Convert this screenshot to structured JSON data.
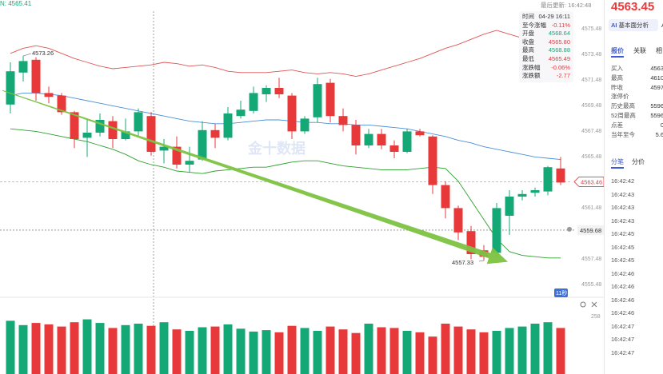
{
  "header": {
    "top_left_price": "N: 4565.41",
    "last_update": "最后更新: 16:42:48"
  },
  "ohlc_panel": {
    "rows": [
      {
        "label": "时间",
        "value": "04-29 16:11",
        "tone": "plain"
      },
      {
        "label": "至今涨幅",
        "value": "-0.11%",
        "tone": "red"
      },
      {
        "label": "开盘",
        "value": "4568.64",
        "tone": "green"
      },
      {
        "label": "收盘",
        "value": "4565.80",
        "tone": "red"
      },
      {
        "label": "最高",
        "value": "4568.88",
        "tone": "green"
      },
      {
        "label": "最低",
        "value": "4565.49",
        "tone": "red"
      },
      {
        "label": "涨跌幅",
        "value": "-0.06%",
        "tone": "red"
      },
      {
        "label": "涨跌额",
        "value": "-2.77",
        "tone": "red"
      }
    ]
  },
  "chart_data": {
    "type": "candlestick",
    "y_range": [
      4555.3,
      4576.3
    ],
    "y_ticks": [
      "4575.48",
      "4573.48",
      "4571.48",
      "4569.48",
      "4567.48",
      "4565.48",
      "4563.48",
      "4561.48",
      "4559.48",
      "4557.48",
      "4555.48"
    ],
    "candles": [
      {
        "o": 4569.5,
        "h": 4572.8,
        "l": 4568.8,
        "c": 4572.1
      },
      {
        "o": 4572.0,
        "h": 4573.3,
        "l": 4571.3,
        "c": 4572.9
      },
      {
        "o": 4573.0,
        "h": 4573.2,
        "l": 4569.8,
        "c": 4570.4
      },
      {
        "o": 4570.4,
        "h": 4570.9,
        "l": 4569.6,
        "c": 4570.1
      },
      {
        "o": 4570.2,
        "h": 4570.4,
        "l": 4568.7,
        "c": 4568.9
      },
      {
        "o": 4568.9,
        "h": 4569.0,
        "l": 4566.1,
        "c": 4566.8
      },
      {
        "o": 4566.9,
        "h": 4568.3,
        "l": 4565.4,
        "c": 4567.3
      },
      {
        "o": 4567.3,
        "h": 4568.8,
        "l": 4567.0,
        "c": 4568.3
      },
      {
        "o": 4568.2,
        "h": 4568.6,
        "l": 4566.1,
        "c": 4566.8
      },
      {
        "o": 4566.8,
        "h": 4568.4,
        "l": 4566.7,
        "c": 4567.4
      },
      {
        "o": 4567.4,
        "h": 4569.2,
        "l": 4567.0,
        "c": 4568.9
      },
      {
        "o": 4568.6,
        "h": 4568.9,
        "l": 4565.5,
        "c": 4565.8
      },
      {
        "o": 4565.9,
        "h": 4566.8,
        "l": 4564.9,
        "c": 4566.2
      },
      {
        "o": 4566.2,
        "h": 4567.0,
        "l": 4564.5,
        "c": 4564.8
      },
      {
        "o": 4564.8,
        "h": 4566.2,
        "l": 4564.2,
        "c": 4565.1
      },
      {
        "o": 4565.2,
        "h": 4568.2,
        "l": 4565.1,
        "c": 4567.5
      },
      {
        "o": 4567.5,
        "h": 4568.0,
        "l": 4566.1,
        "c": 4566.9
      },
      {
        "o": 4566.9,
        "h": 4569.3,
        "l": 4566.7,
        "c": 4568.8
      },
      {
        "o": 4568.6,
        "h": 4569.8,
        "l": 4568.4,
        "c": 4569.1
      },
      {
        "o": 4569.0,
        "h": 4570.9,
        "l": 4568.8,
        "c": 4570.4
      },
      {
        "o": 4570.3,
        "h": 4571.0,
        "l": 4569.7,
        "c": 4570.8
      },
      {
        "o": 4570.8,
        "h": 4571.6,
        "l": 4570.0,
        "c": 4570.3
      },
      {
        "o": 4570.2,
        "h": 4570.4,
        "l": 4566.8,
        "c": 4567.4
      },
      {
        "o": 4567.4,
        "h": 4568.6,
        "l": 4567.2,
        "c": 4568.4
      },
      {
        "o": 4568.5,
        "h": 4571.6,
        "l": 4568.1,
        "c": 4571.1
      },
      {
        "o": 4571.2,
        "h": 4571.5,
        "l": 4568.1,
        "c": 4568.6
      },
      {
        "o": 4568.6,
        "h": 4569.2,
        "l": 4567.4,
        "c": 4567.9
      },
      {
        "o": 4567.9,
        "h": 4568.3,
        "l": 4565.6,
        "c": 4566.3
      },
      {
        "o": 4566.3,
        "h": 4567.6,
        "l": 4566.1,
        "c": 4567.2
      },
      {
        "o": 4567.2,
        "h": 4567.6,
        "l": 4566.0,
        "c": 4566.3
      },
      {
        "o": 4566.3,
        "h": 4566.7,
        "l": 4565.3,
        "c": 4565.8
      },
      {
        "o": 4565.8,
        "h": 4567.6,
        "l": 4565.7,
        "c": 4567.4
      },
      {
        "o": 4567.4,
        "h": 4567.6,
        "l": 4567.0,
        "c": 4567.1
      },
      {
        "o": 4567.0,
        "h": 4567.1,
        "l": 4562.5,
        "c": 4563.2
      },
      {
        "o": 4563.2,
        "h": 4563.5,
        "l": 4560.6,
        "c": 4561.4
      },
      {
        "o": 4561.4,
        "h": 4561.6,
        "l": 4558.9,
        "c": 4559.5
      },
      {
        "o": 4559.6,
        "h": 4560.0,
        "l": 4557.4,
        "c": 4557.8
      },
      {
        "o": 4558.1,
        "h": 4558.5,
        "l": 4557.3,
        "c": 4557.6
      },
      {
        "o": 4557.9,
        "h": 4561.8,
        "l": 4557.6,
        "c": 4561.4
      },
      {
        "o": 4560.8,
        "h": 4562.8,
        "l": 4559.3,
        "c": 4562.3
      },
      {
        "o": 4562.3,
        "h": 4562.8,
        "l": 4562.0,
        "c": 4562.5
      },
      {
        "o": 4562.6,
        "h": 4563.0,
        "l": 4562.3,
        "c": 4562.8
      },
      {
        "o": 4562.7,
        "h": 4564.7,
        "l": 4562.4,
        "c": 4564.6
      },
      {
        "o": 4564.5,
        "h": 4565.4,
        "l": 4563.2,
        "c": 4563.4
      }
    ],
    "ma_upper": [
      4573.5,
      4573.9,
      4574.1,
      4573.9,
      4573.5,
      4573.1,
      4572.8,
      4572.5,
      4572.3,
      4572.4,
      4572.5,
      4572.6,
      4572.8,
      4572.7,
      4572.5,
      4572.6,
      4572.4,
      4572.1,
      4572.0,
      4572.0,
      4572.0,
      4572.1,
      4572.2,
      4572.0,
      4571.9,
      4572.0,
      4571.9,
      4571.7,
      4571.9,
      4572.2,
      4572.5,
      4572.8,
      4573.1,
      4573.5,
      4573.9,
      4574.2,
      4574.6,
      4575.0,
      4575.3,
      4575.0,
      4574.7,
      4574.6,
      4574.4,
      4574.4
    ],
    "ma_middle": [
      4570.2,
      4570.4,
      4570.4,
      4570.3,
      4570.2,
      4570.0,
      4569.8,
      4569.6,
      4569.4,
      4569.2,
      4569.0,
      4568.8,
      4568.6,
      4568.4,
      4568.2,
      4568.1,
      4568.0,
      4568.0,
      4568.1,
      4568.2,
      4568.3,
      4568.3,
      4568.2,
      4568.1,
      4568.1,
      4568.0,
      4568.0,
      4567.9,
      4567.9,
      4567.8,
      4567.7,
      4567.6,
      4567.4,
      4567.2,
      4567.0,
      4566.7,
      4566.5,
      4566.2,
      4566.0,
      4565.8,
      4565.6,
      4565.4,
      4565.3,
      4565.2
    ],
    "ma_lower": [
      4567.6,
      4567.5,
      4567.4,
      4567.2,
      4567.0,
      4566.8,
      4566.6,
      4566.3,
      4566.0,
      4565.6,
      4565.1,
      4564.8,
      4564.6,
      4564.3,
      4564.2,
      4564.1,
      4564.3,
      4564.4,
      4564.5,
      4564.6,
      4564.6,
      4564.8,
      4565.0,
      4565.1,
      4565.1,
      4564.9,
      4564.7,
      4564.6,
      4564.5,
      4564.4,
      4564.4,
      4564.4,
      4564.5,
      4564.6,
      4564.5,
      4563.5,
      4562.0,
      4560.5,
      4559.0,
      4558.0,
      4557.7,
      4557.6,
      4557.5,
      4557.5
    ],
    "volume_bars": [
      74,
      68,
      71,
      69,
      66,
      72,
      76,
      71,
      64,
      68,
      70,
      67,
      72,
      62,
      60,
      65,
      66,
      69,
      63,
      59,
      61,
      58,
      67,
      64,
      60,
      66,
      62,
      57,
      70,
      65,
      64,
      60,
      58,
      52,
      70,
      66,
      62,
      58,
      60,
      64,
      66,
      70,
      72,
      64
    ],
    "annotations": {
      "high_label": "4573.26",
      "low_label": "4557.33",
      "current_price_label": "4563.46",
      "crosshair_price_label": "4559.68",
      "countdown_label": "11秒",
      "volume_axis_label": "258",
      "watermark": "金十数据"
    },
    "trend_arrow": {
      "from": [
        0,
        4570.6
      ],
      "to": [
        38,
        4557.2
      ]
    },
    "lines": {
      "current_price": 4563.46,
      "crosshair_price": 4559.68
    },
    "colors": {
      "up": "#14a876",
      "down": "#e8393a",
      "arrow": "#7dc242",
      "ma_upper": "#e05555",
      "ma_middle": "#4a90d9",
      "ma_lower": "#2ca02c"
    }
  },
  "sidebar": {
    "price": "4563.45",
    "ai_button": "基本面分析",
    "ai_badge": "AI",
    "ai_button_2": "A",
    "tabs": [
      "报价",
      "关联",
      "相"
    ],
    "quotes": [
      {
        "label": "买入",
        "value": "4563"
      },
      {
        "label": "最高",
        "value": "4610"
      },
      {
        "label": "昨收",
        "value": "4597"
      },
      {
        "label": "涨停价",
        "value": ""
      },
      {
        "label": "历史最高",
        "value": "5596"
      },
      {
        "label": "52周最高",
        "value": "5596"
      },
      {
        "label": "点差",
        "value": "0"
      },
      {
        "label": "当年至今",
        "value": "5.6"
      }
    ],
    "tick_tabs": [
      "分笔",
      "分价"
    ],
    "ticks": [
      "16:42:42",
      "16:42:43",
      "16:42:43",
      "16:42:43",
      "16:42:45",
      "16:42:45",
      "16:42:45",
      "16:42:46",
      "16:42:46",
      "16:42:46",
      "16:42:46",
      "16:42:47",
      "16:42:47",
      "16:42:47"
    ]
  }
}
